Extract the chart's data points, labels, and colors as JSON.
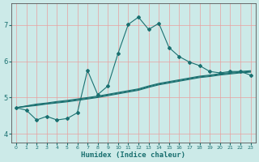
{
  "xlabel": "Humidex (Indice chaleur)",
  "ylabel": "",
  "bg_color": "#cceae8",
  "grid_color": "#e8a0a0",
  "line_color": "#1a7070",
  "xlim": [
    -0.5,
    23.5
  ],
  "ylim": [
    3.75,
    7.6
  ],
  "yticks": [
    4,
    5,
    6,
    7
  ],
  "xticks": [
    0,
    1,
    2,
    3,
    4,
    5,
    6,
    7,
    8,
    9,
    10,
    11,
    12,
    13,
    14,
    15,
    16,
    17,
    18,
    19,
    20,
    21,
    22,
    23
  ],
  "line1_x": [
    0,
    1,
    2,
    3,
    4,
    5,
    6,
    7,
    8,
    9,
    10,
    11,
    12,
    13,
    14,
    15,
    16,
    17,
    18,
    19,
    20,
    21,
    22,
    23
  ],
  "line1_y": [
    4.72,
    4.65,
    4.38,
    4.48,
    4.38,
    4.42,
    4.58,
    5.75,
    5.08,
    5.32,
    6.22,
    7.02,
    7.22,
    6.88,
    7.05,
    6.38,
    6.13,
    5.98,
    5.88,
    5.72,
    5.68,
    5.72,
    5.72,
    5.62
  ],
  "line2_x": [
    0,
    1,
    2,
    3,
    4,
    5,
    6,
    7,
    8,
    9,
    10,
    11,
    12,
    13,
    14,
    15,
    16,
    17,
    18,
    19,
    20,
    21,
    22,
    23
  ],
  "line2_y": [
    4.72,
    4.75,
    4.78,
    4.82,
    4.85,
    4.88,
    4.92,
    4.96,
    5.0,
    5.05,
    5.1,
    5.15,
    5.2,
    5.28,
    5.35,
    5.4,
    5.45,
    5.5,
    5.55,
    5.58,
    5.62,
    5.65,
    5.68,
    5.7
  ],
  "line3_x": [
    0,
    1,
    2,
    3,
    4,
    5,
    6,
    7,
    8,
    9,
    10,
    11,
    12,
    13,
    14,
    15,
    16,
    17,
    18,
    19,
    20,
    21,
    22,
    23
  ],
  "line3_y": [
    4.72,
    4.76,
    4.8,
    4.83,
    4.87,
    4.9,
    4.94,
    4.98,
    5.02,
    5.07,
    5.12,
    5.17,
    5.22,
    5.3,
    5.37,
    5.42,
    5.47,
    5.52,
    5.57,
    5.6,
    5.64,
    5.67,
    5.7,
    5.72
  ],
  "line4_x": [
    0,
    1,
    2,
    3,
    4,
    5,
    6,
    7,
    8,
    9,
    10,
    11,
    12,
    13,
    14,
    15,
    16,
    17,
    18,
    19,
    20,
    21,
    22,
    23
  ],
  "line4_y": [
    4.72,
    4.77,
    4.82,
    4.85,
    4.89,
    4.92,
    4.96,
    5.0,
    5.04,
    5.09,
    5.14,
    5.19,
    5.24,
    5.32,
    5.39,
    5.44,
    5.49,
    5.54,
    5.59,
    5.62,
    5.66,
    5.69,
    5.72,
    5.74
  ]
}
